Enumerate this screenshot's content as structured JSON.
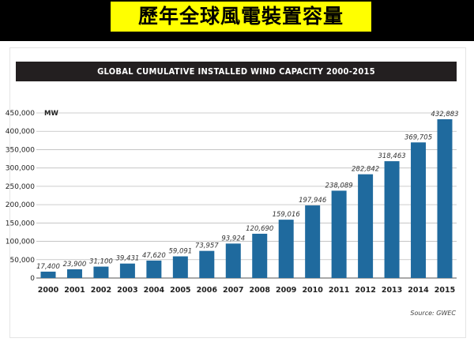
{
  "slide": {
    "title": "歷年全球風電裝置容量",
    "title_bg": "#ffff00",
    "background": "#000000"
  },
  "chart_data": {
    "type": "bar",
    "title": "GLOBAL CUMULATIVE INSTALLED WIND CAPACITY 2000-2015",
    "unit": "MW",
    "categories": [
      "2000",
      "2001",
      "2002",
      "2003",
      "2004",
      "2005",
      "2006",
      "2007",
      "2008",
      "2009",
      "2010",
      "2011",
      "2012",
      "2013",
      "2014",
      "2015"
    ],
    "values": [
      17400,
      23900,
      31100,
      39431,
      47620,
      59091,
      73957,
      93924,
      120690,
      159016,
      197946,
      238089,
      282842,
      318463,
      369705,
      432883
    ],
    "data_labels": [
      "17,400",
      "23,900",
      "31,100",
      "39,431",
      "47,620",
      "59,091",
      "73,957",
      "93,924",
      "120,690",
      "159,016",
      "197,946",
      "238,089",
      "282,842",
      "318,463",
      "369,705",
      "432,883"
    ],
    "y_ticks": [
      0,
      50000,
      100000,
      150000,
      200000,
      250000,
      300000,
      350000,
      400000,
      450000
    ],
    "y_tick_labels": [
      "0",
      "50,000",
      "100,000",
      "150,000",
      "200,000",
      "250,000",
      "300,000",
      "350,000",
      "400,000",
      "450,000"
    ],
    "ylim": [
      0,
      450000
    ],
    "grid": true,
    "bar_color": "#1f6a9e",
    "source": "Source: GWEC"
  }
}
